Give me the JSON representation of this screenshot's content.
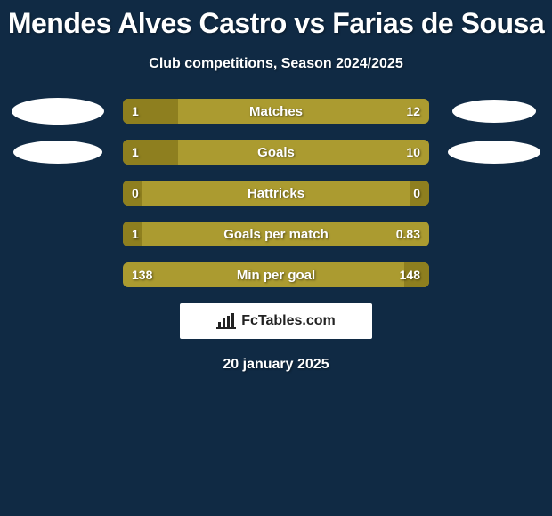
{
  "colors": {
    "page_bg": "#102a44",
    "text_white": "#ffffff",
    "bar_bg": "#ab9b30",
    "bar_left": "#8e7f1f",
    "bar_right": "#8e7f1f",
    "brand_bg": "#ffffff",
    "brand_text": "#222222",
    "avatar_fill": "#ffffff"
  },
  "title": "Mendes Alves Castro vs Farias de Sousa",
  "subtitle": "Club competitions, Season 2024/2025",
  "date": "20 january 2025",
  "brand": "FcTables.com",
  "avatars": {
    "left": [
      {
        "w": 104,
        "h": 30
      },
      {
        "w": 100,
        "h": 26
      }
    ],
    "right": [
      {
        "w": 94,
        "h": 26
      },
      {
        "w": 104,
        "h": 26
      }
    ]
  },
  "stats": [
    {
      "label": "Matches",
      "left_value": "1",
      "right_value": "12",
      "left_pct": 18,
      "right_pct": 0,
      "show_left_avatar": true,
      "show_right_avatar": true,
      "avatar_index": 0
    },
    {
      "label": "Goals",
      "left_value": "1",
      "right_value": "10",
      "left_pct": 18,
      "right_pct": 0,
      "show_left_avatar": true,
      "show_right_avatar": true,
      "avatar_index": 1
    },
    {
      "label": "Hattricks",
      "left_value": "0",
      "right_value": "0",
      "left_pct": 6,
      "right_pct": 6,
      "show_left_avatar": false,
      "show_right_avatar": false
    },
    {
      "label": "Goals per match",
      "left_value": "1",
      "right_value": "0.83",
      "left_pct": 6,
      "right_pct": 0,
      "show_left_avatar": false,
      "show_right_avatar": false
    },
    {
      "label": "Min per goal",
      "left_value": "138",
      "right_value": "148",
      "left_pct": 0,
      "right_pct": 8,
      "show_left_avatar": false,
      "show_right_avatar": false
    }
  ]
}
